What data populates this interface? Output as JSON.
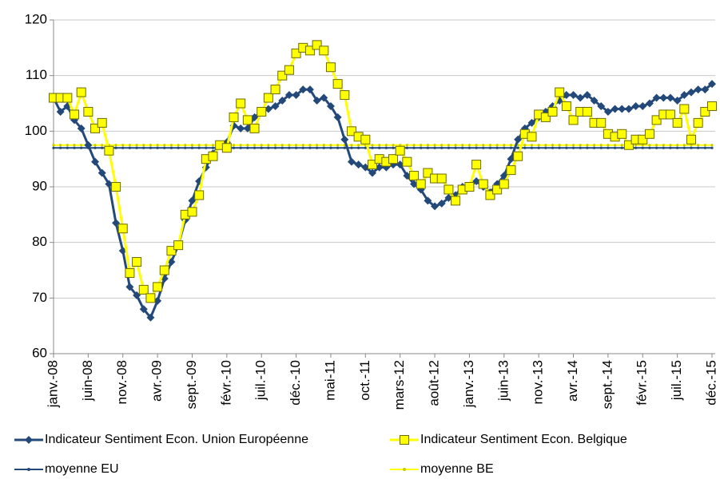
{
  "chart_data": {
    "type": "line",
    "categories": [
      "janv.-08",
      null,
      null,
      null,
      null,
      "juin-08",
      null,
      null,
      null,
      null,
      "nov.-08",
      null,
      null,
      null,
      null,
      "avr.-09",
      null,
      null,
      null,
      null,
      "sept.-09",
      null,
      null,
      null,
      null,
      "févr.-10",
      null,
      null,
      null,
      null,
      "juil.-10",
      null,
      null,
      null,
      null,
      "déc.-10",
      null,
      null,
      null,
      null,
      "mai-11",
      null,
      null,
      null,
      null,
      "oct.-11",
      null,
      null,
      null,
      null,
      "mars-12",
      null,
      null,
      null,
      null,
      "août-12",
      null,
      null,
      null,
      null,
      "janv.-13",
      null,
      null,
      null,
      null,
      "juin-13",
      null,
      null,
      null,
      null,
      "nov.-13",
      null,
      null,
      null,
      null,
      "avr.-14",
      null,
      null,
      null,
      null,
      "sept.-14",
      null,
      null,
      null,
      null,
      "févr.-15",
      null,
      null,
      null,
      null,
      "juil.-15",
      null,
      null,
      null,
      null,
      "déc.-15"
    ],
    "series": [
      {
        "name": "Indicateur Sentiment Econ. Union Européenne",
        "color": "#23497a",
        "marker": "diamond",
        "values": [
          106,
          103.5,
          104.5,
          102,
          100.5,
          97.5,
          94.5,
          92.5,
          90.5,
          83.5,
          78.5,
          72,
          70.5,
          68,
          66.5,
          69.5,
          73.5,
          76.5,
          79.5,
          84,
          87.5,
          91,
          93.5,
          96,
          97.5,
          98,
          101,
          100.5,
          100.5,
          102.5,
          103.5,
          104,
          104.5,
          105.5,
          106.5,
          106.5,
          107.5,
          107.5,
          105.5,
          106,
          104.5,
          102.5,
          98.5,
          94.5,
          94,
          93.5,
          92.5,
          93.5,
          93.5,
          94,
          94,
          92,
          90.5,
          89.5,
          87.5,
          86.5,
          87,
          88,
          88.5,
          90,
          90,
          91,
          90,
          89,
          90.5,
          92,
          95,
          98.5,
          100.5,
          101.5,
          102.5,
          103.5,
          104.5,
          105.5,
          106.5,
          106.5,
          106,
          106.5,
          105.5,
          104.5,
          103.5,
          104,
          104,
          104,
          104.5,
          104.5,
          105,
          106,
          106,
          106,
          105.5,
          106.5,
          107,
          107.5,
          107.5,
          108.5
        ]
      },
      {
        "name": "Indicateur Sentiment Econ. Belgique",
        "color": "#ffff00",
        "marker": "square",
        "values": [
          106,
          106,
          106,
          103,
          107,
          103.5,
          100.5,
          101.5,
          96.5,
          90,
          82.5,
          74.5,
          76.5,
          71.5,
          70,
          72,
          75,
          78.5,
          79.5,
          85,
          85.5,
          88.5,
          95,
          95.5,
          97.5,
          97,
          102.5,
          105,
          102,
          100.5,
          103.5,
          106,
          107.5,
          110,
          111,
          114,
          115,
          114.5,
          115.5,
          114.5,
          111.5,
          108.5,
          106.5,
          100,
          99,
          98.5,
          94,
          95,
          94.5,
          95,
          96.5,
          94.5,
          92,
          90.5,
          92.5,
          91.5,
          91.5,
          89.5,
          87.5,
          89.5,
          90,
          94,
          90.5,
          88.5,
          89.5,
          90.5,
          93,
          95.5,
          99.5,
          99,
          103,
          102.5,
          103.5,
          107,
          104.5,
          102,
          103.5,
          103.5,
          101.5,
          101.5,
          99.5,
          99,
          99.5,
          97.5,
          98.5,
          98.5,
          99.5,
          102,
          103,
          103,
          101.5,
          104,
          98.5,
          101.5,
          103.5,
          104.5
        ]
      }
    ],
    "reference_lines": [
      {
        "name": "moyenne EU",
        "color": "#23497a",
        "value": 97
      },
      {
        "name": "moyenne BE",
        "color": "#ffff00",
        "value": 97.5
      }
    ],
    "ylim": [
      60,
      120
    ],
    "yticks": [
      60,
      70,
      80,
      90,
      100,
      110,
      120
    ],
    "grid": true,
    "legend": "bottom"
  }
}
